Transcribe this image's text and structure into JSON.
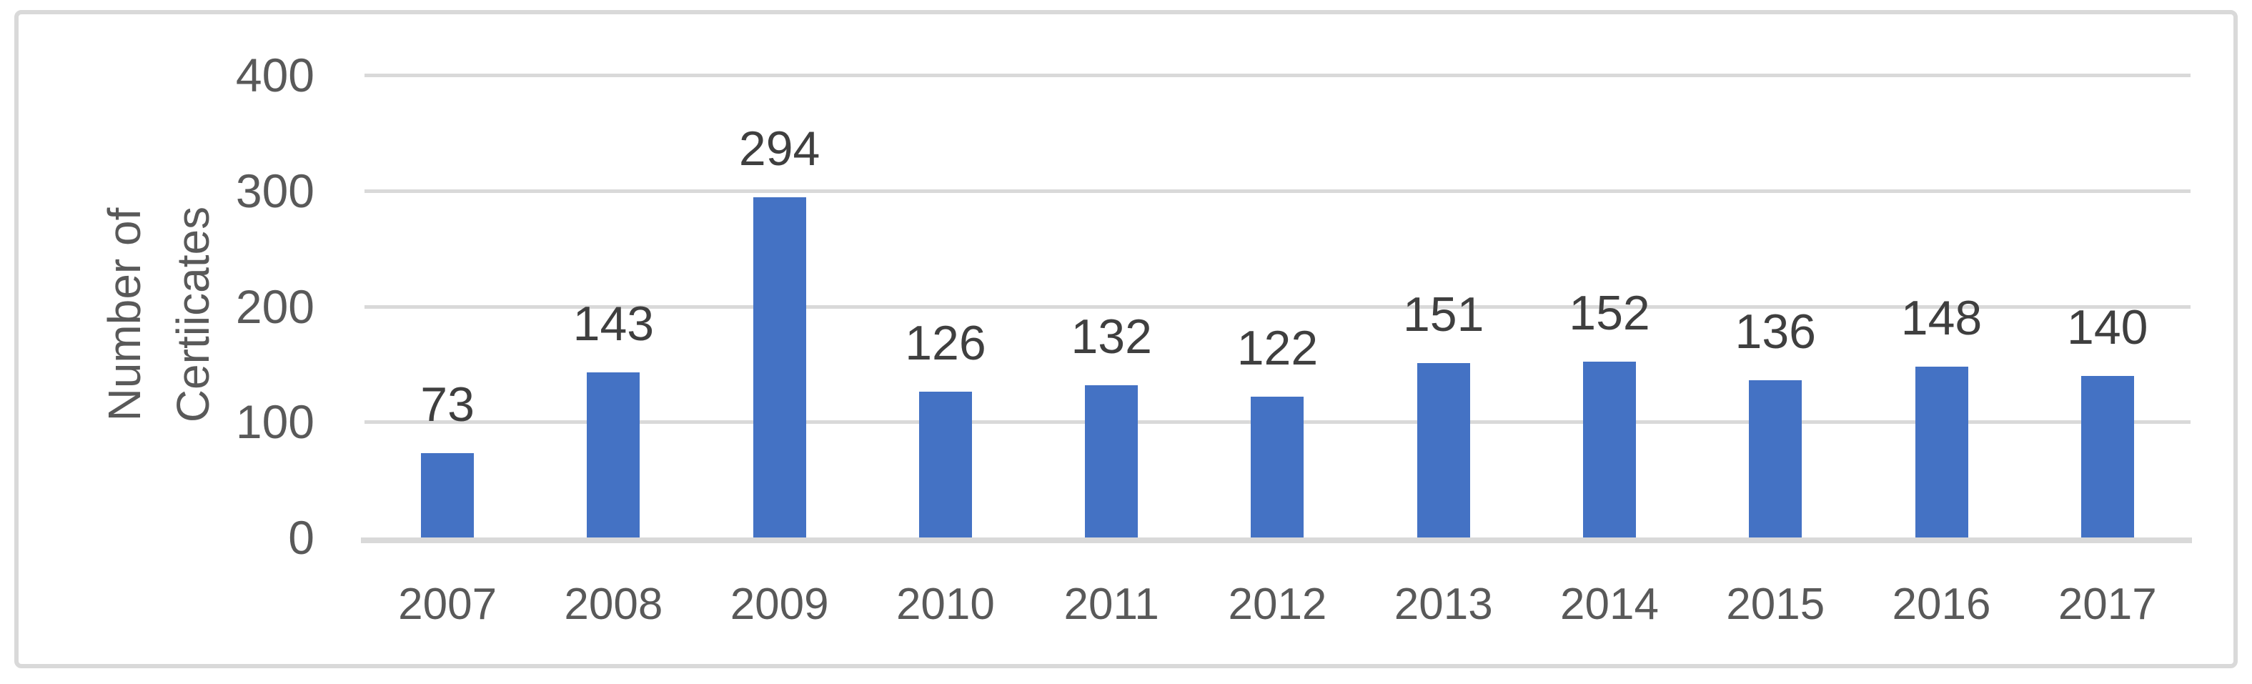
{
  "chart_data": {
    "type": "bar",
    "title": "",
    "categories": [
      "2007",
      "2008",
      "2009",
      "2010",
      "2011",
      "2012",
      "2013",
      "2014",
      "2015",
      "2016",
      "2017"
    ],
    "values": [
      73,
      143,
      294,
      126,
      132,
      122,
      151,
      152,
      136,
      148,
      140
    ],
    "xlabel": "",
    "ylabel": "Number of Certiicates",
    "ylabel_lines": [
      "Number of",
      "Certiicates"
    ],
    "yticks": [
      0,
      100,
      200,
      300,
      400
    ],
    "ylim": [
      0,
      400
    ],
    "grid": "horizontal",
    "legend": "none",
    "data_labels": "above-bars"
  },
  "colors": {
    "background": "#FFFFFF",
    "bar": "#4472C4",
    "gridline": "#D9D9D9",
    "axis_line": "#D9D9D9",
    "frame_border": "#D9D9D9",
    "tick_text": "#595959",
    "axis_label_text": "#595959",
    "data_label_text": "#3F3F3F"
  }
}
